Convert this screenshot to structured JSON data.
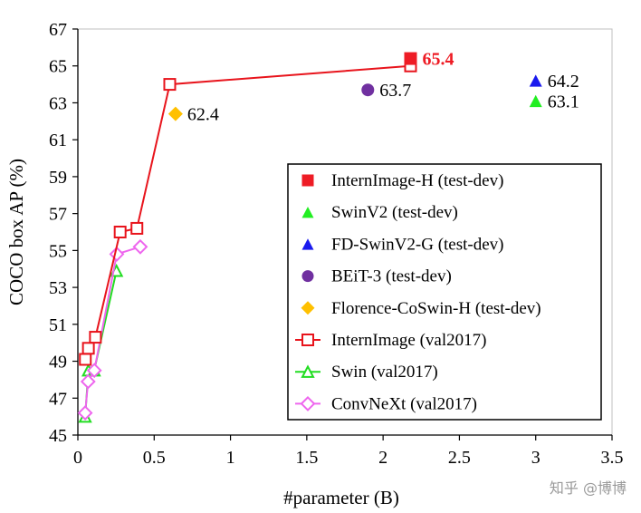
{
  "chart_data": {
    "type": "scatter",
    "xlabel": "#parameter (B)",
    "ylabel": "COCO box AP (%)",
    "xlim": [
      0,
      3.5
    ],
    "ylim": [
      45,
      67
    ],
    "xticks": [
      "0",
      "0.5",
      "1",
      "1.5",
      "2",
      "2.5",
      "3",
      "3.5"
    ],
    "xtick_values": [
      0,
      0.5,
      1,
      1.5,
      2,
      2.5,
      3,
      3.5
    ],
    "yticks": [
      "45",
      "47",
      "49",
      "51",
      "53",
      "55",
      "57",
      "59",
      "61",
      "63",
      "65",
      "67"
    ],
    "ytick_values": [
      45,
      47,
      49,
      51,
      53,
      55,
      57,
      59,
      61,
      63,
      65,
      67
    ],
    "legend_position": "lower-right",
    "series": [
      {
        "key": "internimage_h",
        "name": "InternImage-H (test-dev)",
        "marker": "square-filled",
        "color": "#ee1c25",
        "points": [
          {
            "x": 2.18,
            "y": 65.4
          }
        ],
        "label": "65.4",
        "label_style": "bold-red"
      },
      {
        "key": "swinv2",
        "name": "SwinV2 (test-dev)",
        "marker": "triangle-filled",
        "color": "#22ee22",
        "points": [
          {
            "x": 3.0,
            "y": 63.1
          }
        ],
        "label": "63.1"
      },
      {
        "key": "fd_swinv2",
        "name": "FD-SwinV2-G (test-dev)",
        "marker": "triangle-filled",
        "color": "#1a1aee",
        "points": [
          {
            "x": 3.0,
            "y": 64.2
          }
        ],
        "label": "64.2"
      },
      {
        "key": "beit3",
        "name": "BEiT-3 (test-dev)",
        "marker": "circle-filled",
        "color": "#7030a0",
        "points": [
          {
            "x": 1.9,
            "y": 63.7
          }
        ],
        "label": "63.7"
      },
      {
        "key": "florence",
        "name": "Florence-CoSwin-H (test-dev)",
        "marker": "diamond-filled",
        "color": "#ffc000",
        "points": [
          {
            "x": 0.64,
            "y": 62.4
          }
        ],
        "label": "62.4"
      },
      {
        "key": "internimage_val",
        "name": "InternImage (val2017)",
        "marker": "square-open",
        "color": "#e8141c",
        "line": true,
        "points": [
          {
            "x": 0.049,
            "y": 49.1
          },
          {
            "x": 0.069,
            "y": 49.7
          },
          {
            "x": 0.115,
            "y": 50.3
          },
          {
            "x": 0.277,
            "y": 56.0
          },
          {
            "x": 0.387,
            "y": 56.2
          },
          {
            "x": 0.602,
            "y": 64.0
          },
          {
            "x": 2.18,
            "y": 65.0
          }
        ]
      },
      {
        "key": "swin_val",
        "name": "Swin (val2017)",
        "marker": "triangle-open",
        "color": "#22dd22",
        "line": true,
        "points": [
          {
            "x": 0.048,
            "y": 46.0
          },
          {
            "x": 0.069,
            "y": 48.5
          },
          {
            "x": 0.107,
            "y": 48.5
          },
          {
            "x": 0.253,
            "y": 53.9
          }
        ]
      },
      {
        "key": "convnext_val",
        "name": "ConvNeXt (val2017)",
        "marker": "diamond-open",
        "color": "#ee66ee",
        "line": true,
        "points": [
          {
            "x": 0.048,
            "y": 46.2
          },
          {
            "x": 0.067,
            "y": 47.9
          },
          {
            "x": 0.108,
            "y": 48.5
          },
          {
            "x": 0.255,
            "y": 54.8
          },
          {
            "x": 0.409,
            "y": 55.2
          }
        ]
      }
    ]
  },
  "watermark": "知乎 @博博"
}
